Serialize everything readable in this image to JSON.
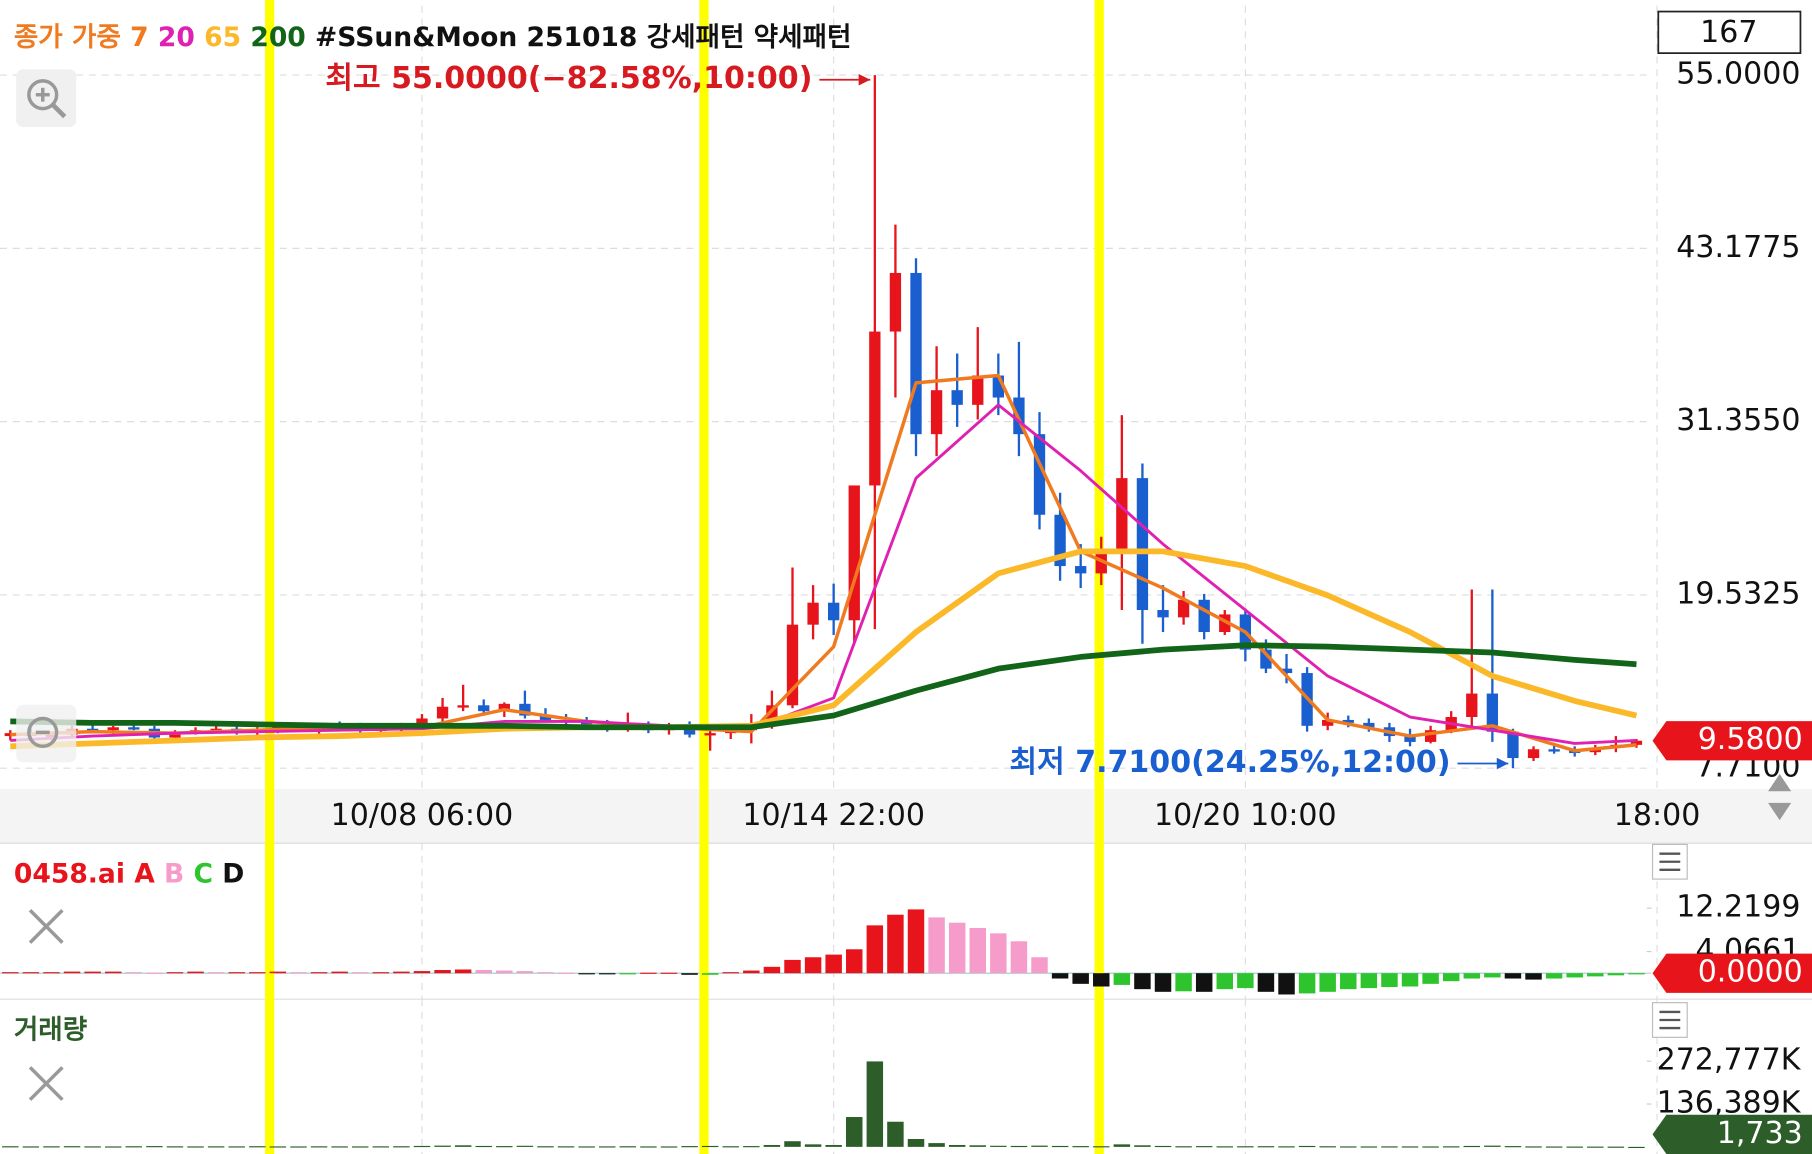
{
  "chart_data": [
    {
      "type": "candlestick",
      "counter": 167,
      "ma_label": "종가 가중",
      "subtitle": "#SSun&Moon 251018 강세패턴 약세패턴",
      "up_color": "#e8141b",
      "down_color": "#1a5fcf",
      "xlim": [
        -0.5,
        79.5
      ],
      "xticks": [
        {
          "value": 20,
          "label": "10/08 06:00"
        },
        {
          "value": 40,
          "label": "10/14 22:00"
        },
        {
          "value": 60,
          "label": "10/20 10:00"
        },
        {
          "value": 80,
          "label": "18:00"
        }
      ],
      "ylim": [
        6.29,
        59.73
      ],
      "yticks": [
        {
          "value": 55,
          "label": "55.0000"
        },
        43.1775,
        {
          "value": 31.355,
          "label": "31.3550"
        },
        19.5325,
        {
          "value": 7.71,
          "label": "7.7100"
        }
      ],
      "grid": true,
      "highlight_x": [
        12.6,
        33.7,
        52.9
      ],
      "highlight_color": "#ffff00",
      "current": {
        "value": 9.58,
        "label": "9.5800",
        "color": "#e8141b"
      },
      "annotations": [
        {
          "text": "최고 55.0000(−82.58%,10:00)",
          "x": 42,
          "y": 55,
          "color": "#d71920"
        },
        {
          "text": "최저 7.7100(24.25%,12:00)",
          "x": 73,
          "y": 7.71,
          "color": "#1a5fcf"
        }
      ],
      "ohlc": [
        [
          9.9,
          10.3,
          9.6,
          10.1
        ],
        [
          10.1,
          10.4,
          9.8,
          9.9
        ],
        [
          9.9,
          10.2,
          9.6,
          10.0
        ],
        [
          10.0,
          10.6,
          9.9,
          10.4
        ],
        [
          10.4,
          10.7,
          10.1,
          10.3
        ],
        [
          10.3,
          10.6,
          10.0,
          10.5
        ],
        [
          10.5,
          10.9,
          10.3,
          10.4
        ],
        [
          10.4,
          10.6,
          9.6,
          9.8
        ],
        [
          9.8,
          10.3,
          9.6,
          10.2
        ],
        [
          10.2,
          10.5,
          10.0,
          10.3
        ],
        [
          10.3,
          10.6,
          10.1,
          10.4
        ],
        [
          10.4,
          10.6,
          10.0,
          10.2
        ],
        [
          10.2,
          10.5,
          9.9,
          10.3
        ],
        [
          10.3,
          10.6,
          10.1,
          10.5
        ],
        [
          10.5,
          10.8,
          10.2,
          10.4
        ],
        [
          10.4,
          10.7,
          10.0,
          10.6
        ],
        [
          10.6,
          10.9,
          10.3,
          10.5
        ],
        [
          10.5,
          10.8,
          10.1,
          10.3
        ],
        [
          10.3,
          10.6,
          10.0,
          10.4
        ],
        [
          10.4,
          10.8,
          10.2,
          10.7
        ],
        [
          10.7,
          11.4,
          10.5,
          11.1
        ],
        [
          11.1,
          12.5,
          10.9,
          11.9
        ],
        [
          11.9,
          13.4,
          11.6,
          12.0
        ],
        [
          12.0,
          12.4,
          11.3,
          11.6
        ],
        [
          11.6,
          12.2,
          11.2,
          12.1
        ],
        [
          12.1,
          13.0,
          11.1,
          11.3
        ],
        [
          11.3,
          11.8,
          10.9,
          11.0
        ],
        [
          11.0,
          11.4,
          10.6,
          10.9
        ],
        [
          10.9,
          11.2,
          10.5,
          10.7
        ],
        [
          10.7,
          11.0,
          10.2,
          10.4
        ],
        [
          10.4,
          11.5,
          10.2,
          10.6
        ],
        [
          10.6,
          10.9,
          10.1,
          10.3
        ],
        [
          10.3,
          10.8,
          10.0,
          10.6
        ],
        [
          10.6,
          10.9,
          9.8,
          10.0
        ],
        [
          10.0,
          10.5,
          8.9,
          10.1
        ],
        [
          10.1,
          10.7,
          9.7,
          10.3
        ],
        [
          10.3,
          11.4,
          9.4,
          10.6
        ],
        [
          10.6,
          13.0,
          10.4,
          12.0
        ],
        [
          12.0,
          21.4,
          11.8,
          17.5
        ],
        [
          17.5,
          20.2,
          16.5,
          19.0
        ],
        [
          19.0,
          20.3,
          16.8,
          17.8
        ],
        [
          17.8,
          27.0,
          16.3,
          27.0
        ],
        [
          27.0,
          55.0,
          17.2,
          37.5
        ],
        [
          37.5,
          44.8,
          33.0,
          41.5
        ],
        [
          41.5,
          42.5,
          29.0,
          30.5
        ],
        [
          30.5,
          36.5,
          29.0,
          33.5
        ],
        [
          33.5,
          36.0,
          31.0,
          32.5
        ],
        [
          32.5,
          37.8,
          31.5,
          34.5
        ],
        [
          34.5,
          36.0,
          31.8,
          33.0
        ],
        [
          33.0,
          36.8,
          29.0,
          30.5
        ],
        [
          30.5,
          32.0,
          24.0,
          25.0
        ],
        [
          25.0,
          26.5,
          20.5,
          21.5
        ],
        [
          21.5,
          23.0,
          20.0,
          21.0
        ],
        [
          21.0,
          23.5,
          20.2,
          22.5
        ],
        [
          22.5,
          31.8,
          18.5,
          27.5
        ],
        [
          27.5,
          28.5,
          16.2,
          18.5
        ],
        [
          18.5,
          20.2,
          17.0,
          18.0
        ],
        [
          18.0,
          19.8,
          17.5,
          19.2
        ],
        [
          19.2,
          19.6,
          16.5,
          17.0
        ],
        [
          17.0,
          18.5,
          16.8,
          18.2
        ],
        [
          18.2,
          18.6,
          15.0,
          15.8
        ],
        [
          15.8,
          16.5,
          14.2,
          14.5
        ],
        [
          14.5,
          15.5,
          13.5,
          14.2
        ],
        [
          14.2,
          14.6,
          10.2,
          10.6
        ],
        [
          10.6,
          11.5,
          10.3,
          11.0
        ],
        [
          11.0,
          11.3,
          10.5,
          10.8
        ],
        [
          10.8,
          11.1,
          10.2,
          10.5
        ],
        [
          10.5,
          10.8,
          9.5,
          9.9
        ],
        [
          9.9,
          10.4,
          9.2,
          9.5
        ],
        [
          9.5,
          10.6,
          9.4,
          10.3
        ],
        [
          10.3,
          11.6,
          10.1,
          11.2
        ],
        [
          11.2,
          19.9,
          10.5,
          12.8
        ],
        [
          12.8,
          19.9,
          9.5,
          10.2
        ],
        [
          10.2,
          10.4,
          7.71,
          8.4
        ],
        [
          8.4,
          9.2,
          8.2,
          9.0
        ],
        [
          9.0,
          9.3,
          8.7,
          8.9
        ],
        [
          8.9,
          9.2,
          8.5,
          8.8
        ],
        [
          8.8,
          9.3,
          8.6,
          9.1
        ],
        [
          9.1,
          9.9,
          8.8,
          9.3
        ],
        [
          9.3,
          9.7,
          9.1,
          9.58
        ]
      ],
      "series": [
        {
          "name": "7",
          "color": "#f07a1f",
          "width": 3,
          "x": [
            0,
            4,
            8,
            12,
            16,
            20,
            24,
            28,
            32,
            36,
            40,
            44,
            48,
            52,
            56,
            60,
            64,
            68,
            72,
            76,
            79
          ],
          "values": [
            10.0,
            10.2,
            10.1,
            10.3,
            10.5,
            10.5,
            11.7,
            10.9,
            10.5,
            10.2,
            16.0,
            34.0,
            34.5,
            22.5,
            20.0,
            17.0,
            11.0,
            9.9,
            10.6,
            8.9,
            9.3
          ]
        },
        {
          "name": "20",
          "color": "#e020b0",
          "width": 2.5,
          "x": [
            0,
            4,
            8,
            12,
            16,
            20,
            24,
            28,
            32,
            36,
            40,
            44,
            48,
            52,
            56,
            60,
            64,
            68,
            72,
            76,
            79
          ],
          "values": [
            9.6,
            9.9,
            10.1,
            10.2,
            10.3,
            10.4,
            10.9,
            10.9,
            10.6,
            10.4,
            12.5,
            27.5,
            32.5,
            28.0,
            23.0,
            18.5,
            14.0,
            11.2,
            10.3,
            9.4,
            9.6
          ]
        },
        {
          "name": "65",
          "color": "#fbb829",
          "width": 5,
          "x": [
            0,
            4,
            8,
            12,
            16,
            20,
            24,
            28,
            32,
            36,
            40,
            44,
            48,
            52,
            56,
            60,
            64,
            68,
            72,
            76,
            79
          ],
          "values": [
            9.2,
            9.4,
            9.6,
            9.8,
            9.9,
            10.1,
            10.4,
            10.5,
            10.5,
            10.6,
            12.0,
            17.0,
            21.0,
            22.5,
            22.5,
            21.5,
            19.5,
            17.0,
            14.0,
            12.3,
            11.3
          ]
        },
        {
          "name": "200",
          "color": "#116418",
          "width": 5,
          "x": [
            0,
            4,
            8,
            12,
            16,
            20,
            24,
            28,
            32,
            36,
            40,
            44,
            48,
            52,
            56,
            60,
            64,
            68,
            72,
            76,
            79
          ],
          "values": [
            10.9,
            10.8,
            10.8,
            10.7,
            10.6,
            10.6,
            10.6,
            10.5,
            10.5,
            10.5,
            11.3,
            13.0,
            14.5,
            15.3,
            15.8,
            16.1,
            16.0,
            15.8,
            15.6,
            15.1,
            14.8
          ]
        }
      ]
    },
    {
      "type": "bar",
      "title": "0458.ai",
      "title_color": "#e8141b",
      "legend": [
        {
          "name": "A",
          "color": "#e8141b"
        },
        {
          "name": "B",
          "color": "#f59ccb"
        },
        {
          "name": "C",
          "color": "#2ec42e"
        },
        {
          "name": "D",
          "color": "#111111"
        }
      ],
      "ylim": [
        -4.89,
        24.44
      ],
      "yticks": [
        12.2199,
        4.0661,
        {
          "value": 0,
          "label": "0.0000"
        }
      ],
      "current": {
        "value": 0,
        "label": "0.0000",
        "color": "#e8141b"
      },
      "values": [
        0.2,
        0.2,
        0.2,
        0.3,
        0.3,
        0.3,
        0.2,
        0.1,
        0.2,
        0.3,
        0.2,
        0.2,
        0.2,
        0.3,
        0.2,
        0.2,
        0.3,
        0.2,
        0.2,
        0.3,
        0.4,
        0.6,
        0.7,
        0.6,
        0.5,
        0.4,
        0.2,
        0.1,
        -0.1,
        -0.2,
        -0.1,
        0.1,
        0.1,
        -0.3,
        -0.3,
        0.2,
        0.5,
        1.2,
        2.5,
        3.0,
        3.5,
        4.5,
        9,
        11,
        12,
        10.5,
        9.5,
        8.5,
        7.5,
        6,
        3,
        -1,
        -2,
        -2.5,
        -2.2,
        -3,
        -3.5,
        -3.4,
        -3.5,
        -3,
        -2.8,
        -3.5,
        -4,
        -3.8,
        -3.5,
        -3,
        -2.8,
        -2.6,
        -2.5,
        -2,
        -1.5,
        -1,
        -0.8,
        -1,
        -1.2,
        -1,
        -0.8,
        -0.6,
        -0.4,
        -0.2
      ]
    },
    {
      "type": "bar",
      "title": "거래량",
      "title_color": "#2d5e2a",
      "color": "#2d5e2a",
      "ylim": [
        -22700000,
        470000000
      ],
      "yticks": [
        {
          "value": 272777000,
          "label": "272,777K"
        },
        {
          "value": 136389000,
          "label": "136,389K"
        }
      ],
      "current": {
        "value": 1733,
        "label": "1,733",
        "color": "#2d5e2a"
      },
      "values": [
        2000000,
        1500000,
        1800000,
        2200000,
        1600000,
        1400000,
        2000000,
        2500000,
        1800000,
        1500000,
        1700000,
        1600000,
        2100000,
        1500000,
        1400000,
        1800000,
        1600000,
        1500000,
        1700000,
        2000000,
        3000000,
        4000000,
        5000000,
        3000000,
        2500000,
        3500000,
        2000000,
        1800000,
        1500000,
        1600000,
        2000000,
        1500000,
        1400000,
        2500000,
        3000000,
        2000000,
        2500000,
        6000000,
        18000000,
        8000000,
        6000000,
        95000000,
        272000000,
        80000000,
        25000000,
        12000000,
        6000000,
        5000000,
        3500000,
        3000000,
        4000000,
        3000000,
        2500000,
        2000000,
        8000000,
        5000000,
        3000000,
        2000000,
        2500000,
        1800000,
        2000000,
        2200000,
        1800000,
        3000000,
        2000000,
        1500000,
        1400000,
        1600000,
        1500000,
        1400000,
        1800000,
        3000000,
        4000000,
        2500000,
        1500000,
        1200000,
        1000000,
        900000,
        800000,
        1733
      ]
    }
  ]
}
